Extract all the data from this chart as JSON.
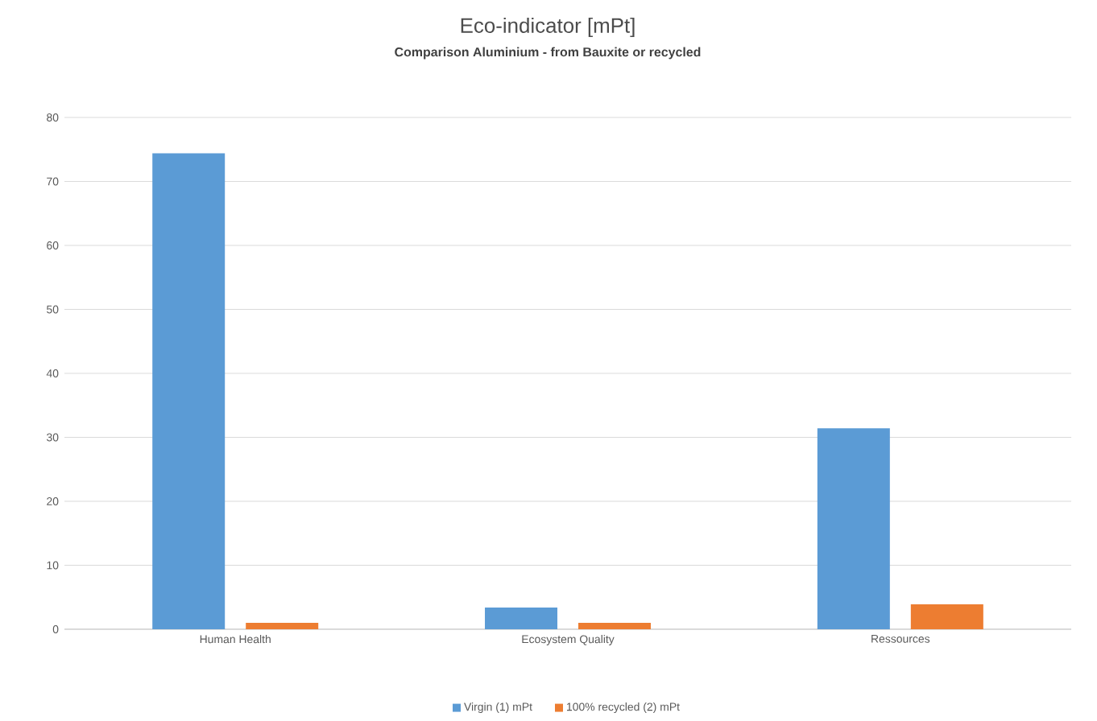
{
  "chart_data": {
    "type": "bar",
    "title": "Eco-indicator [mPt]",
    "subtitle": "Comparison Aluminium - from Bauxite or recycled",
    "categories": [
      "Human Health",
      "Ecosystem Quality",
      "Ressources"
    ],
    "series": [
      {
        "name": "Virgin (1) mPt",
        "color": "#5b9bd5",
        "values": [
          74.4,
          3.4,
          31.4
        ]
      },
      {
        "name": "100% recycled (2) mPt",
        "color": "#ed7d31",
        "values": [
          1.0,
          1.0,
          3.9
        ]
      }
    ],
    "ylim": [
      0,
      80
    ],
    "yticks": [
      0,
      10,
      20,
      30,
      40,
      50,
      60,
      70,
      80
    ],
    "grid": "y",
    "legend": "bottom"
  }
}
